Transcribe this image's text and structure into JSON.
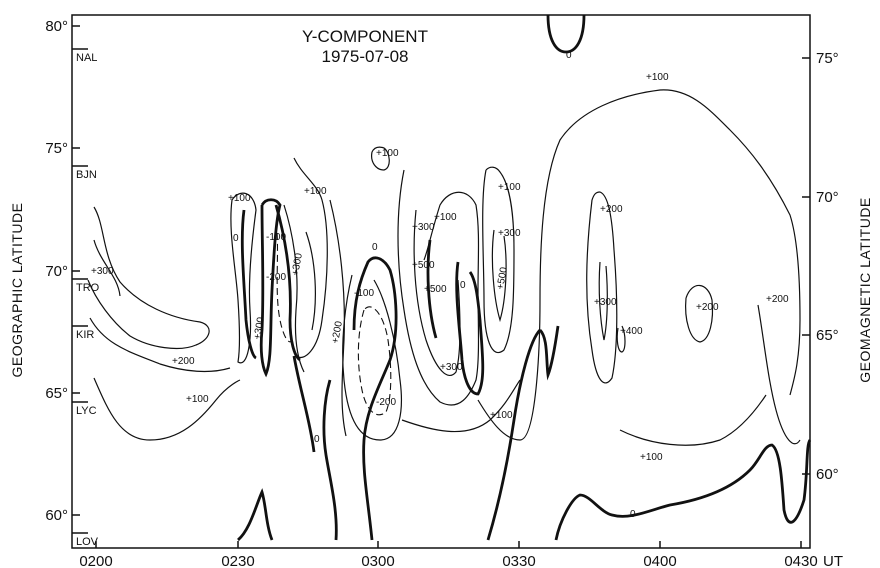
{
  "chart_data": {
    "type": "contour",
    "title": "Y-COMPONENT",
    "subtitle": "1975-07-08",
    "xlabel": "UT",
    "ylabel_left": "GEOGRAPHIC LATITUDE",
    "ylabel_right": "GEOMAGNETIC LATITUDE",
    "x_ticks": [
      "0200",
      "0230",
      "0300",
      "0330",
      "0400",
      "0430"
    ],
    "x_unit": "UT",
    "y_ticks_left": [
      "80°",
      "75°",
      "70°",
      "65°",
      "60°"
    ],
    "y_ticks_right": [
      "75°",
      "70°",
      "65°",
      "60°"
    ],
    "stations": [
      "NAL",
      "BJN",
      "TRO",
      "KIR",
      "LYC",
      "LOV"
    ],
    "contour_labels": [
      "0",
      "+100",
      "+200",
      "+300",
      "+400",
      "+500",
      "-100",
      "-200",
      "+100",
      "+200"
    ],
    "grid": false
  }
}
